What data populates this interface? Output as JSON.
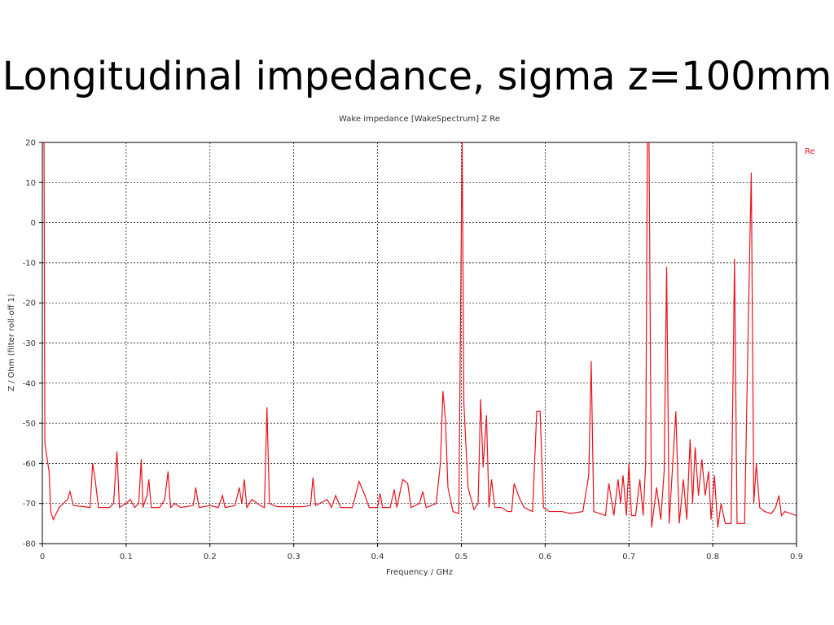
{
  "slide_title": "Longitudinal impedance, sigma  z=100mm",
  "chart_data": {
    "type": "line",
    "title": "Wake impedance [WakeSpectrum] Z Re",
    "xlabel": "Frequency / GHz",
    "ylabel": "Z / Ohm (filter roll-off 1)",
    "xlim": [
      0,
      0.9
    ],
    "ylim": [
      -80,
      20
    ],
    "xticks": [
      0,
      0.1,
      0.2,
      0.3,
      0.4,
      0.5,
      0.6,
      0.7,
      0.8,
      0.9
    ],
    "yticks": [
      -80,
      -70,
      -60,
      -50,
      -40,
      -30,
      -20,
      -10,
      0,
      10,
      20
    ],
    "grid": true,
    "legend": "upper right",
    "x": [
      0.002,
      0.003,
      0.008,
      0.01,
      0.013,
      0.02,
      0.03,
      0.033,
      0.037,
      0.05,
      0.057,
      0.06,
      0.063,
      0.067,
      0.08,
      0.085,
      0.089,
      0.092,
      0.1,
      0.105,
      0.11,
      0.115,
      0.118,
      0.12,
      0.125,
      0.127,
      0.13,
      0.14,
      0.146,
      0.15,
      0.153,
      0.158,
      0.165,
      0.18,
      0.183,
      0.187,
      0.2,
      0.21,
      0.215,
      0.218,
      0.23,
      0.235,
      0.238,
      0.241,
      0.244,
      0.25,
      0.26,
      0.265,
      0.268,
      0.271,
      0.28,
      0.31,
      0.32,
      0.323,
      0.326,
      0.34,
      0.345,
      0.35,
      0.356,
      0.37,
      0.378,
      0.385,
      0.39,
      0.4,
      0.403,
      0.406,
      0.415,
      0.42,
      0.423,
      0.43,
      0.436,
      0.44,
      0.45,
      0.454,
      0.458,
      0.47,
      0.475,
      0.478,
      0.481,
      0.484,
      0.49,
      0.497,
      0.5,
      0.501,
      0.503,
      0.508,
      0.515,
      0.52,
      0.523,
      0.526,
      0.53,
      0.533,
      0.536,
      0.54,
      0.548,
      0.555,
      0.56,
      0.563,
      0.57,
      0.575,
      0.585,
      0.59,
      0.594,
      0.598,
      0.605,
      0.62,
      0.63,
      0.645,
      0.652,
      0.655,
      0.658,
      0.665,
      0.672,
      0.676,
      0.682,
      0.687,
      0.69,
      0.693,
      0.697,
      0.7,
      0.703,
      0.708,
      0.713,
      0.717,
      0.72,
      0.722,
      0.724,
      0.727,
      0.733,
      0.738,
      0.742,
      0.745,
      0.748,
      0.752,
      0.756,
      0.76,
      0.765,
      0.769,
      0.773,
      0.776,
      0.779,
      0.783,
      0.787,
      0.791,
      0.795,
      0.798,
      0.802,
      0.806,
      0.81,
      0.815,
      0.822,
      0.826,
      0.829,
      0.838,
      0.844,
      0.846,
      0.849,
      0.852,
      0.856,
      0.862,
      0.87,
      0.875,
      0.879,
      0.882,
      0.886,
      0.893,
      0.9
    ],
    "series": [
      {
        "name": "Re",
        "color": "#e8141c",
        "values": [
          20,
          -55,
          -62,
          -72,
          -74,
          -71,
          -69,
          -67,
          -70.5,
          -70.8,
          -71,
          -60,
          -64,
          -71,
          -71,
          -70,
          -57,
          -71,
          -70,
          -69,
          -71,
          -70,
          -59,
          -71,
          -68,
          -64,
          -71,
          -71,
          -69,
          -62,
          -71,
          -70,
          -71,
          -70.5,
          -66,
          -71,
          -70.5,
          -71,
          -68,
          -71,
          -70.5,
          -66,
          -70,
          -64,
          -71,
          -69,
          -70.5,
          -71,
          -46,
          -70,
          -70.8,
          -70.8,
          -70.5,
          -63.5,
          -70.5,
          -69,
          -71,
          -68,
          -71,
          -71,
          -64.5,
          -68,
          -71,
          -71,
          -67.5,
          -71,
          -71,
          -66.5,
          -71,
          -64,
          -65,
          -71,
          -70,
          -67,
          -71,
          -70,
          -60,
          -42,
          -49,
          -66,
          -72,
          -72.5,
          -1,
          20,
          -45,
          -66,
          -71.5,
          -70,
          -44,
          -61,
          -48,
          -71,
          -64,
          -71,
          -71,
          -72,
          -72,
          -65,
          -69,
          -71,
          -72,
          -47,
          -47,
          -71,
          -72,
          -72,
          -72.5,
          -72,
          -63,
          -34.5,
          -72,
          -72.5,
          -73,
          -65,
          -73,
          -64,
          -70,
          -63,
          -73,
          -60,
          -73,
          -73,
          -64,
          -73,
          -60,
          20,
          20,
          -76,
          -66,
          -74,
          -62,
          -11,
          -75,
          -61,
          -47,
          -75,
          -64,
          -74,
          -54,
          -70,
          -56,
          -68,
          -59,
          -68,
          -62,
          -74,
          -63,
          -76,
          -70,
          -75,
          -75,
          -9,
          -75,
          -75,
          -8,
          12.5,
          -70,
          -60,
          -71,
          -72,
          -72.5,
          -71,
          -68,
          -73,
          -72,
          -72.5,
          -73
        ]
      }
    ]
  }
}
